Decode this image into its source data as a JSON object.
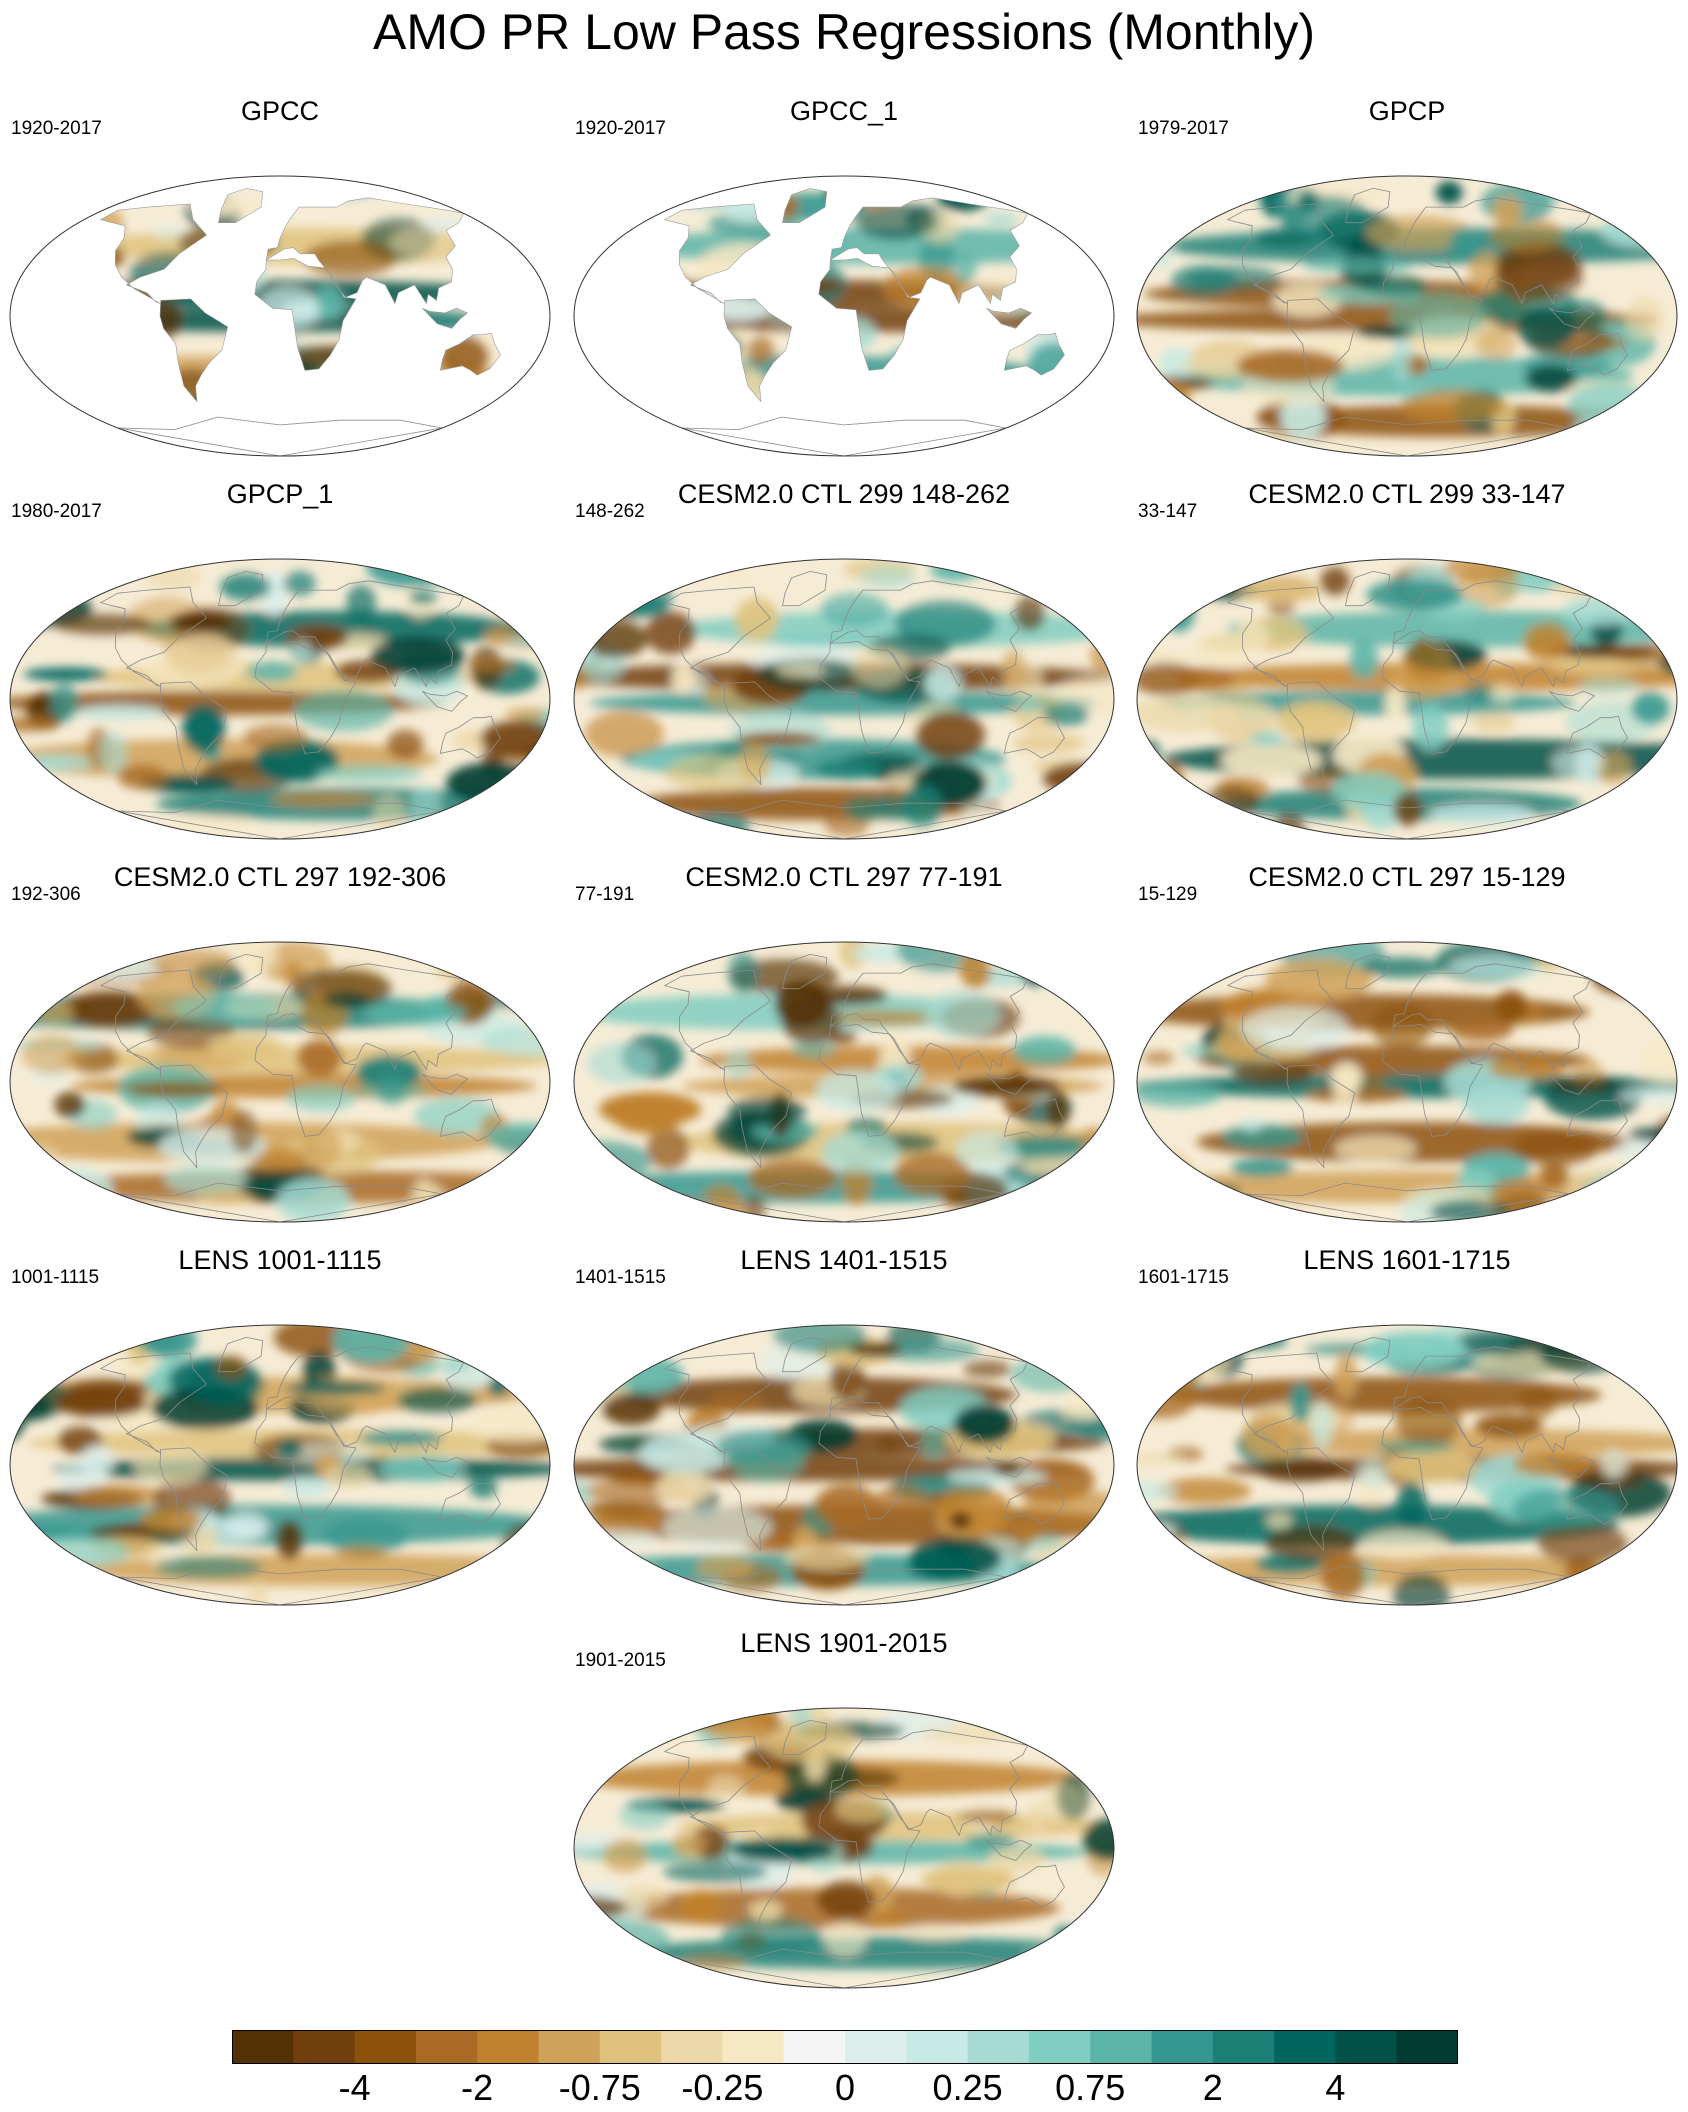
{
  "title": "AMO PR Low Pass Regressions (Monthly)",
  "panels": [
    {
      "title": "GPCC",
      "period": "1920-2017",
      "coverage": "land",
      "seed": 3,
      "wet": 0.45
    },
    {
      "title": "GPCC_1",
      "period": "1920-2017",
      "coverage": "land",
      "seed": 7,
      "wet": 0.5
    },
    {
      "title": "GPCP",
      "period": "1979-2017",
      "coverage": "global",
      "seed": 11,
      "wet": 0.55
    },
    {
      "title": "GPCP_1",
      "period": "1980-2017",
      "coverage": "global",
      "seed": 13,
      "wet": 0.5
    },
    {
      "title": "CESM2.0 CTL 299 148-262",
      "period": "148-262",
      "coverage": "global",
      "seed": 17,
      "wet": 0.55
    },
    {
      "title": "CESM2.0 CTL 299 33-147",
      "period": "33-147",
      "coverage": "global",
      "seed": 19,
      "wet": 0.5
    },
    {
      "title": "CESM2.0 CTL 297 192-306",
      "period": "192-306",
      "coverage": "global",
      "seed": 23,
      "wet": 0.45
    },
    {
      "title": "CESM2.0 CTL 297 77-191",
      "period": "77-191",
      "coverage": "global",
      "seed": 29,
      "wet": 0.5
    },
    {
      "title": "CESM2.0 CTL 297 15-129",
      "period": "15-129",
      "coverage": "global",
      "seed": 31,
      "wet": 0.55
    },
    {
      "title": "LENS 1001-1115",
      "period": "1001-1115",
      "coverage": "global",
      "seed": 37,
      "wet": 0.5
    },
    {
      "title": "LENS 1401-1515",
      "period": "1401-1515",
      "coverage": "global",
      "seed": 41,
      "wet": 0.5
    },
    {
      "title": "LENS 1601-1715",
      "period": "1601-1715",
      "coverage": "global",
      "seed": 43,
      "wet": 0.45
    },
    {
      "title": "LENS 1901-2015",
      "period": "1901-2015",
      "coverage": "global",
      "seed": 47,
      "wet": 0.5
    }
  ],
  "colorbar": {
    "colors": [
      "#543005",
      "#713f0d",
      "#8c510a",
      "#a86a24",
      "#bf812d",
      "#d0a158",
      "#dfc27d",
      "#ecd8a8",
      "#f6e8c3",
      "#f5f5f5",
      "#dcefec",
      "#c7eae5",
      "#a5dbd3",
      "#80cdc1",
      "#5ab4a8",
      "#35978f",
      "#1d8077",
      "#01665e",
      "#015148",
      "#003c30"
    ],
    "labels": [
      {
        "text": "-4",
        "index": 2
      },
      {
        "text": "-2",
        "index": 4
      },
      {
        "text": "-0.75",
        "index": 6
      },
      {
        "text": "-0.25",
        "index": 8
      },
      {
        "text": "0",
        "index": 10
      },
      {
        "text": "0.25",
        "index": 12
      },
      {
        "text": "0.75",
        "index": 14
      },
      {
        "text": "2",
        "index": 16
      },
      {
        "text": "4",
        "index": 18
      }
    ]
  }
}
